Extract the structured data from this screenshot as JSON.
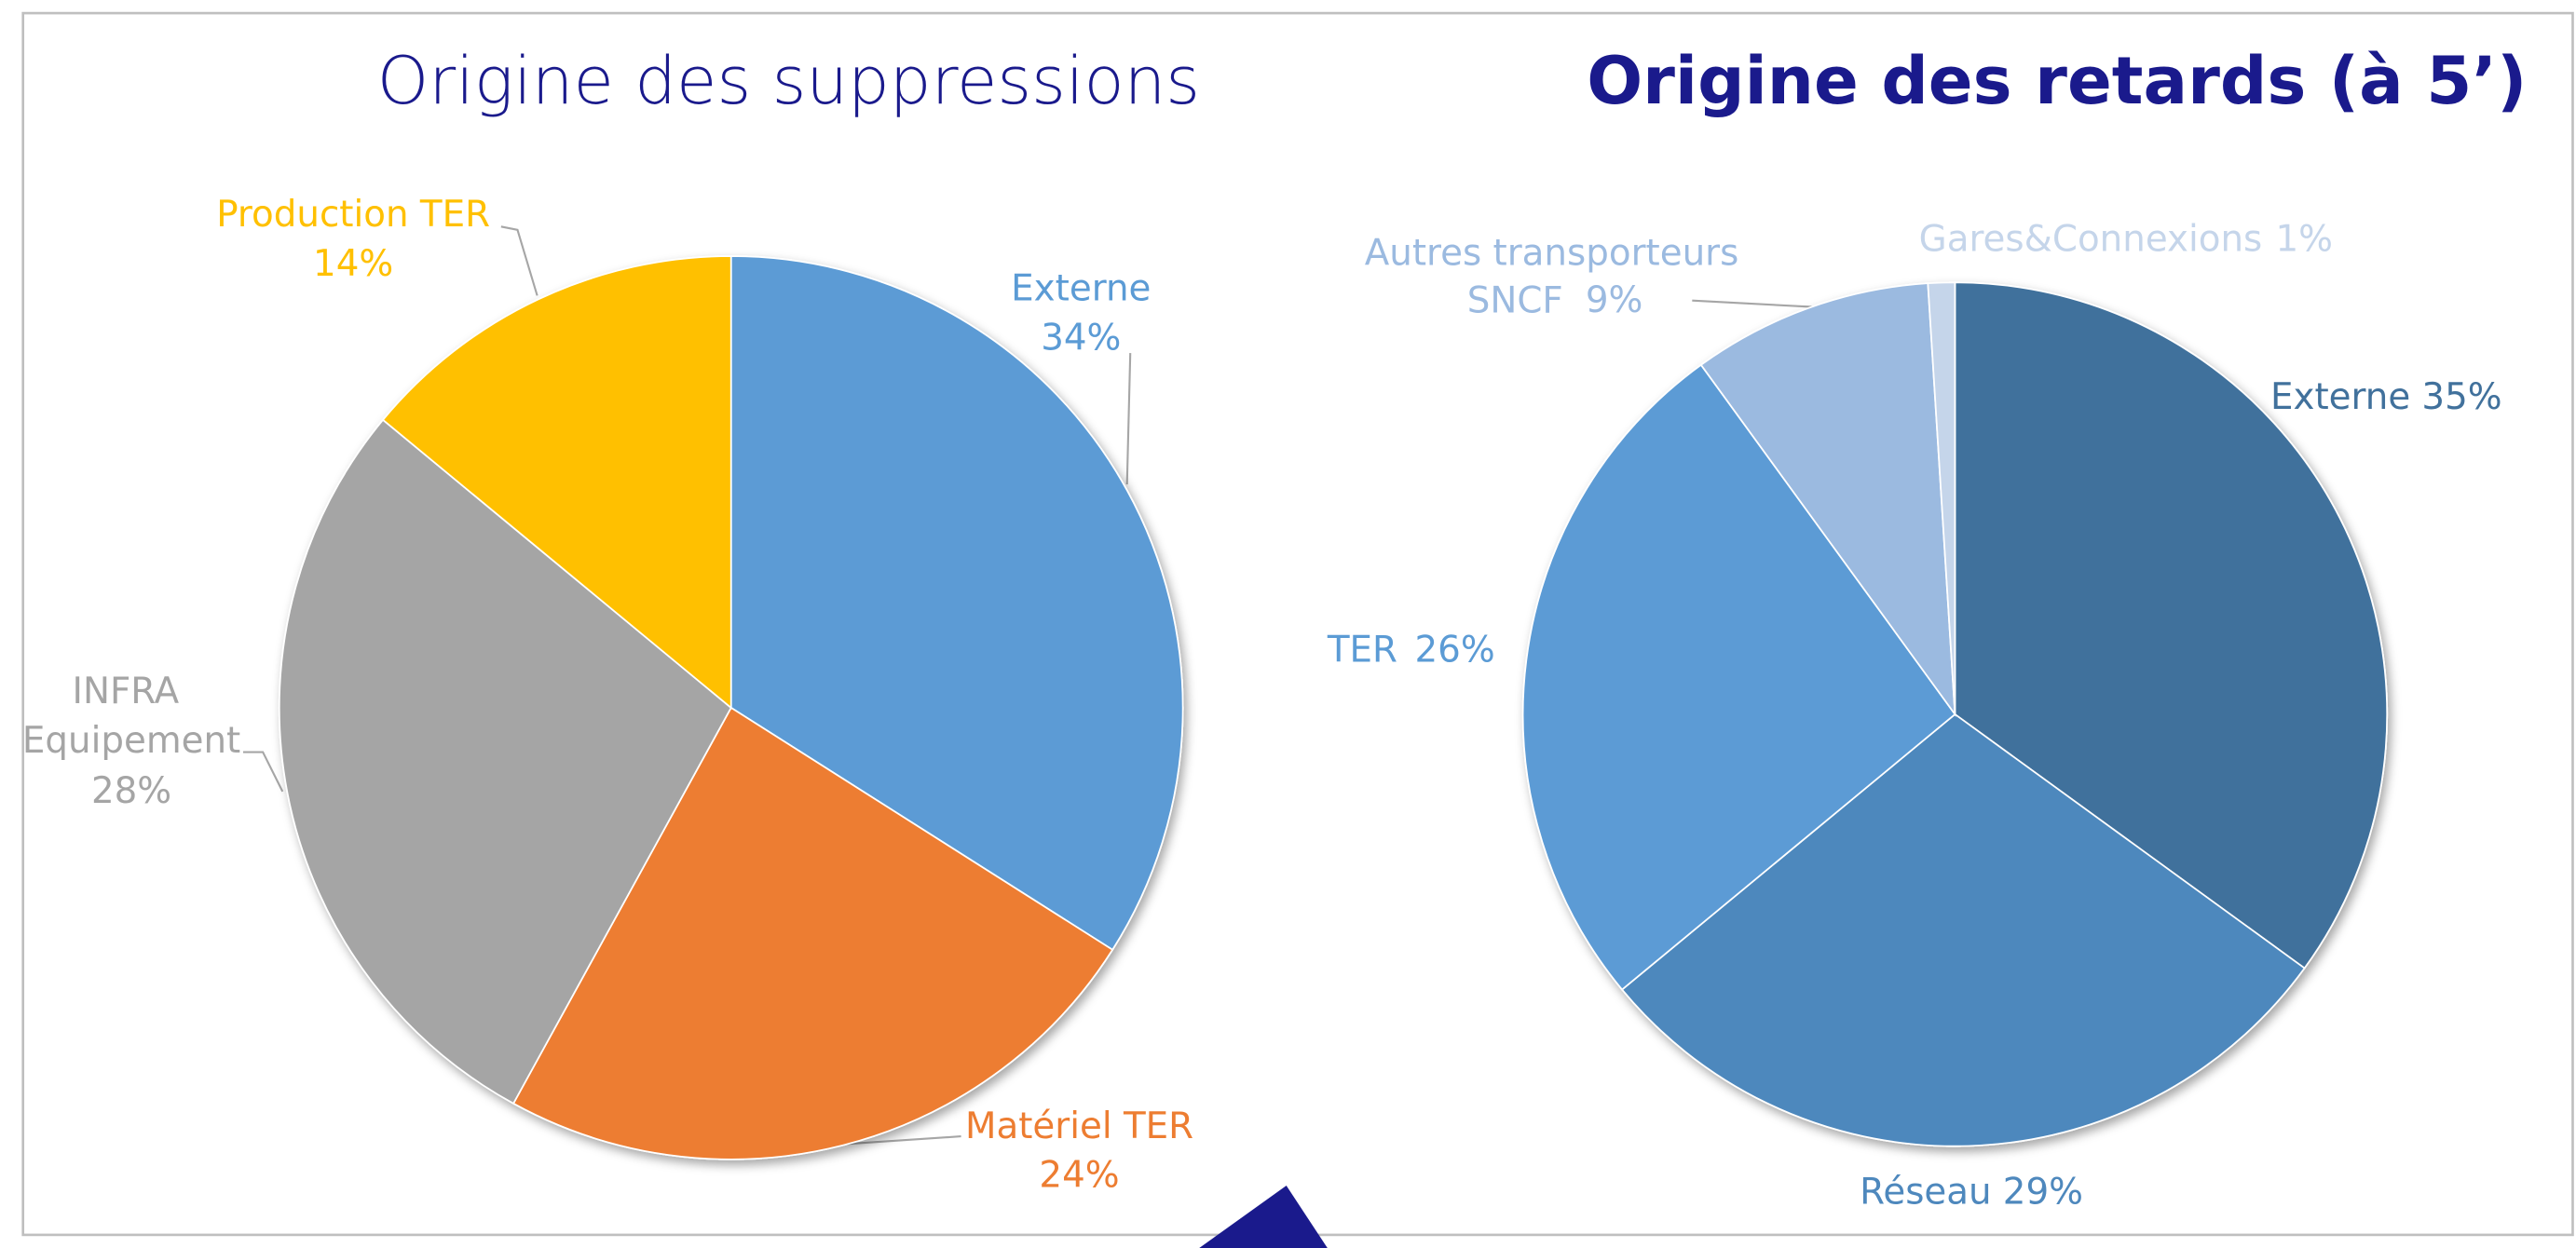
{
  "chart_data": [
    {
      "type": "pie",
      "title": "Origine des suppressions",
      "categories": [
        "Externe",
        "Matériel TER",
        "INFRA Equipement",
        "Production TER"
      ],
      "values": [
        34,
        24,
        28,
        14
      ],
      "value_labels": [
        "34%",
        "24%",
        "28%",
        "14%"
      ],
      "colors": [
        "#5b9bd5",
        "#ed7d31",
        "#a5a5a5",
        "#ffc000"
      ]
    },
    {
      "type": "pie",
      "title": "Origine des retards (à 5’)",
      "categories": [
        "Externe",
        "Réseau",
        "TER",
        "Autres transporteurs SNCF",
        "Gares&Connexions"
      ],
      "values": [
        35,
        29,
        26,
        9,
        1
      ],
      "value_labels": [
        "35%",
        "29%",
        "26%",
        "9%",
        "1%"
      ],
      "colors": [
        "#41719c",
        "#4e88bd",
        "#5b9bd5",
        "#9bbae0",
        "#c5d5ea"
      ]
    }
  ]
}
